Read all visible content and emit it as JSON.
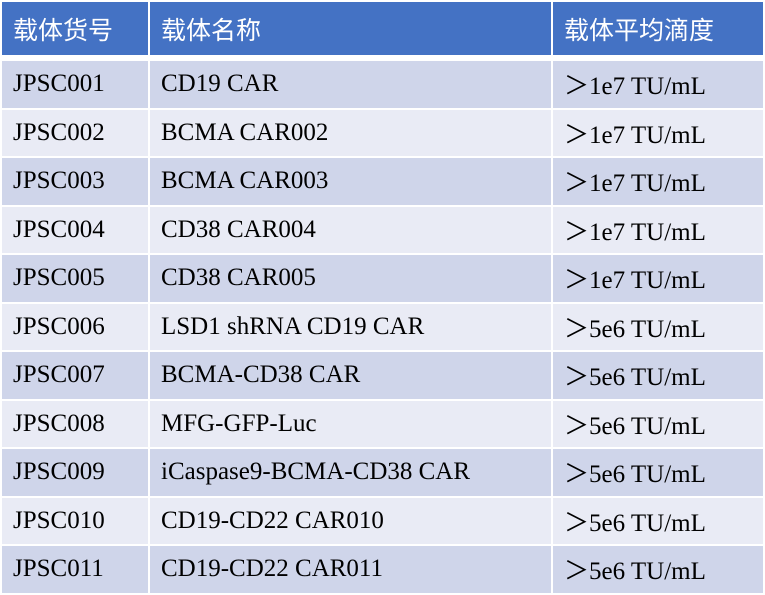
{
  "colors": {
    "header": "#4472C4",
    "row_odd": "#CFD5EA",
    "row_even": "#E9EBF5"
  },
  "headers": [
    "载体货号",
    "载体名称",
    "载体平均滴度"
  ],
  "rows": [
    [
      "JPSC001",
      "CD19 CAR",
      "＞1e7 TU/mL"
    ],
    [
      "JPSC002",
      "BCMA CAR002",
      "＞1e7 TU/mL"
    ],
    [
      "JPSC003",
      "BCMA CAR003",
      "＞1e7 TU/mL"
    ],
    [
      "JPSC004",
      "CD38 CAR004",
      "＞1e7 TU/mL"
    ],
    [
      "JPSC005",
      "CD38 CAR005",
      "＞1e7 TU/mL"
    ],
    [
      "JPSC006",
      "LSD1 shRNA CD19 CAR",
      "＞5e6 TU/mL"
    ],
    [
      "JPSC007",
      "BCMA-CD38 CAR",
      "＞5e6 TU/mL"
    ],
    [
      "JPSC008",
      "MFG-GFP-Luc",
      "＞5e6 TU/mL"
    ],
    [
      "JPSC009",
      "iCaspase9-BCMA-CD38 CAR",
      "＞5e6 TU/mL"
    ],
    [
      "JPSC010",
      "CD19-CD22 CAR010",
      "＞5e6 TU/mL"
    ],
    [
      "JPSC011",
      "CD19-CD22 CAR011",
      "＞5e6 TU/mL"
    ]
  ]
}
